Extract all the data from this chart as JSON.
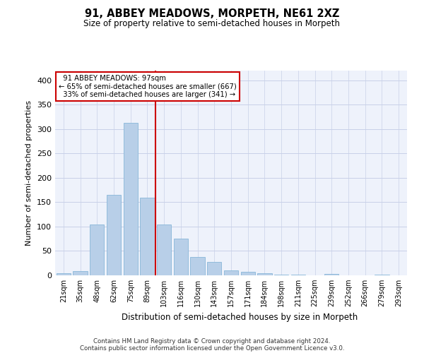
{
  "title1": "91, ABBEY MEADOWS, MORPETH, NE61 2XZ",
  "title2": "Size of property relative to semi-detached houses in Morpeth",
  "xlabel": "Distribution of semi-detached houses by size in Morpeth",
  "ylabel": "Number of semi-detached properties",
  "footnote1": "Contains HM Land Registry data © Crown copyright and database right 2024.",
  "footnote2": "Contains public sector information licensed under the Open Government Licence v3.0.",
  "categories": [
    "21sqm",
    "35sqm",
    "48sqm",
    "62sqm",
    "75sqm",
    "89sqm",
    "103sqm",
    "116sqm",
    "130sqm",
    "143sqm",
    "157sqm",
    "171sqm",
    "184sqm",
    "198sqm",
    "211sqm",
    "225sqm",
    "239sqm",
    "252sqm",
    "266sqm",
    "279sqm",
    "293sqm"
  ],
  "values": [
    5,
    8,
    105,
    165,
    313,
    160,
    105,
    75,
    37,
    27,
    10,
    7,
    4,
    2,
    1,
    0,
    3,
    0,
    0,
    1,
    0
  ],
  "bar_color": "#b8cfe8",
  "bar_edge_color": "#7aafd4",
  "property_label": "91 ABBEY MEADOWS: 97sqm",
  "pct_smaller": 65,
  "count_smaller": 667,
  "pct_larger": 33,
  "count_larger": 341,
  "vline_index": 5.5,
  "annotation_box_color": "#ffffff",
  "annotation_box_edge": "#cc0000",
  "vline_color": "#cc0000",
  "bg_color": "#eef2fb",
  "grid_color": "#c8d0e8",
  "ylim": [
    0,
    420
  ],
  "yticks": [
    0,
    50,
    100,
    150,
    200,
    250,
    300,
    350,
    400
  ]
}
